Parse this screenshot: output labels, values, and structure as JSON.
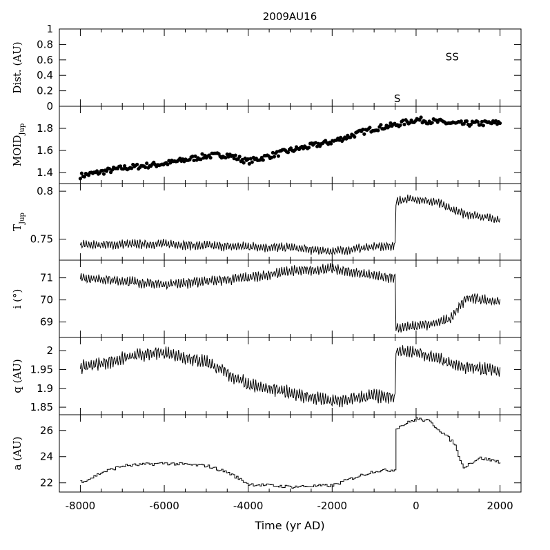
{
  "chart_data": {
    "type": "multi-panel",
    "title": "2009AU16",
    "xlabel": "Time (yr AD)",
    "xlim": [
      -8500,
      2500
    ],
    "xticks": [
      -8000,
      -6000,
      -4000,
      -2000,
      0,
      2000
    ],
    "x_tick_labels": [
      "-8000",
      "-6000",
      "-4000",
      "-2000",
      "0",
      "2000"
    ],
    "panels": [
      {
        "id": "dist",
        "type": "scatter-markers",
        "ylabel": "Dist. (AU)",
        "ylim": [
          0,
          1
        ],
        "yticks": [
          0,
          0.2,
          0.4,
          0.6,
          0.8,
          1
        ],
        "ytick_labels": [
          "0",
          "0.2",
          "0.4",
          "0.6",
          "0.8",
          "1"
        ],
        "markers": [
          {
            "label": "S",
            "x": -450,
            "y": 0.1
          },
          {
            "label": "S",
            "x": 780,
            "y": 0.64
          },
          {
            "label": "S",
            "x": 940,
            "y": 0.64
          }
        ]
      },
      {
        "id": "moid",
        "type": "scatter",
        "ylabel": "MOID",
        "ylabel_sub": "Jup",
        "ylim": [
          1.3,
          2.0
        ],
        "yticks": [
          1.4,
          1.6,
          1.8
        ],
        "ytick_labels": [
          "1.4",
          "1.6",
          "1.8"
        ],
        "trend": [
          [
            -8000,
            1.37
          ],
          [
            -7000,
            1.44
          ],
          [
            -6000,
            1.48
          ],
          [
            -5000,
            1.55
          ],
          [
            -4500,
            1.56
          ],
          [
            -4000,
            1.5
          ],
          [
            -3500,
            1.55
          ],
          [
            -3000,
            1.6
          ],
          [
            -2000,
            1.68
          ],
          [
            -1000,
            1.8
          ],
          [
            -500,
            1.83
          ],
          [
            0,
            1.88
          ],
          [
            1000,
            1.84
          ],
          [
            2000,
            1.85
          ]
        ],
        "noise": 0.025
      },
      {
        "id": "tjup",
        "type": "line",
        "ylabel": "T",
        "ylabel_sub": "Jup",
        "ylim": [
          0.728,
          0.808
        ],
        "yticks": [
          0.75,
          0.8
        ],
        "ytick_labels": [
          "0.75",
          "0.8"
        ],
        "trend": [
          [
            -8000,
            0.744
          ],
          [
            -6000,
            0.745
          ],
          [
            -5000,
            0.743
          ],
          [
            -3000,
            0.741
          ],
          [
            -2000,
            0.737
          ],
          [
            -1000,
            0.742
          ],
          [
            -500,
            0.743
          ],
          [
            -480,
            0.79
          ],
          [
            0,
            0.792
          ],
          [
            500,
            0.788
          ],
          [
            1000,
            0.778
          ],
          [
            2000,
            0.77
          ]
        ],
        "amplitude": 0.004
      },
      {
        "id": "incl",
        "type": "line",
        "ylabel": "i (°)",
        "ylim": [
          68.3,
          71.8
        ],
        "yticks": [
          69,
          70,
          71
        ],
        "ytick_labels": [
          "69",
          "70",
          "71"
        ],
        "trend": [
          [
            -8000,
            71.0
          ],
          [
            -6000,
            70.7
          ],
          [
            -4000,
            71.0
          ],
          [
            -3000,
            71.3
          ],
          [
            -2000,
            71.4
          ],
          [
            -1000,
            71.1
          ],
          [
            -500,
            71.0
          ],
          [
            -480,
            68.7
          ],
          [
            0,
            68.8
          ],
          [
            800,
            69.1
          ],
          [
            1200,
            70.1
          ],
          [
            2000,
            69.9
          ]
        ],
        "amplitude": 0.2
      },
      {
        "id": "q",
        "type": "line",
        "ylabel": "q (AU)",
        "ylim": [
          1.83,
          2.035
        ],
        "yticks": [
          1.85,
          1.9,
          1.95,
          2
        ],
        "ytick_labels": [
          "1.85",
          "1.9",
          "1.95",
          "2"
        ],
        "trend": [
          [
            -8000,
            1.955
          ],
          [
            -6500,
            1.99
          ],
          [
            -6000,
            1.995
          ],
          [
            -5000,
            1.97
          ],
          [
            -4000,
            1.91
          ],
          [
            -2000,
            1.865
          ],
          [
            -1000,
            1.88
          ],
          [
            -500,
            1.875
          ],
          [
            -480,
            2.0
          ],
          [
            0,
            1.995
          ],
          [
            1000,
            1.96
          ],
          [
            2000,
            1.945
          ]
        ],
        "amplitude": 0.015
      },
      {
        "id": "a",
        "type": "step",
        "ylabel": "a (AU)",
        "ylim": [
          21.3,
          27.2
        ],
        "yticks": [
          22,
          24,
          26
        ],
        "ytick_labels": [
          "22",
          "24",
          "26"
        ],
        "trend": [
          [
            -8000,
            22.1
          ],
          [
            -7800,
            22.3
          ],
          [
            -7500,
            22.8
          ],
          [
            -7000,
            23.3
          ],
          [
            -6000,
            23.5
          ],
          [
            -5000,
            23.3
          ],
          [
            -4500,
            22.8
          ],
          [
            -4000,
            21.9
          ],
          [
            -3000,
            21.7
          ],
          [
            -2000,
            21.8
          ],
          [
            -1500,
            22.4
          ],
          [
            -1000,
            22.9
          ],
          [
            -500,
            23.0
          ],
          [
            -480,
            26.2
          ],
          [
            0,
            26.9
          ],
          [
            300,
            26.7
          ],
          [
            700,
            25.6
          ],
          [
            900,
            25.0
          ],
          [
            1100,
            23.2
          ],
          [
            1500,
            23.9
          ],
          [
            2000,
            23.6
          ]
        ],
        "amplitude": 0.12
      }
    ]
  }
}
